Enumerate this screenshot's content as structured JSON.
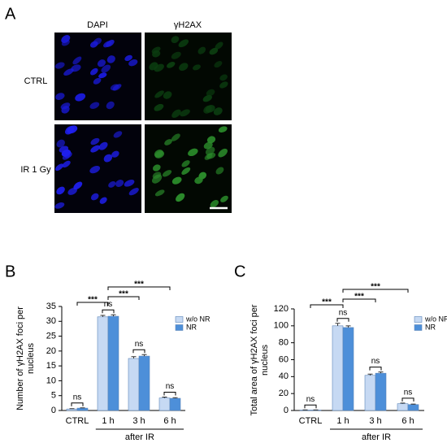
{
  "panel_a": {
    "label": "A",
    "columns": [
      "DAPI",
      "γH2AX"
    ],
    "rows": [
      "CTRL",
      "IR 1 Gy"
    ]
  },
  "chart_data": [
    {
      "type": "bar",
      "panel": "B",
      "ylabel": "Number of γH2AX foci per nucleus",
      "categories": [
        "CTRL",
        "1 h",
        "3 h",
        "6 h"
      ],
      "group_label": "after IR",
      "series": [
        {
          "name": "w/o NR",
          "color": "#c6d9f3",
          "values": [
            0.5,
            31.5,
            17.5,
            4.2
          ],
          "errors": [
            0.1,
            0.5,
            0.6,
            0.3
          ]
        },
        {
          "name": "NR",
          "color": "#4d8fd9",
          "values": [
            0.8,
            31.7,
            18.3,
            4.1
          ],
          "errors": [
            0.1,
            0.5,
            0.5,
            0.2
          ]
        }
      ],
      "ylim": [
        0,
        35
      ],
      "yticks": [
        0,
        5,
        10,
        15,
        20,
        25,
        30,
        35
      ],
      "significance": [
        "ns",
        "ns",
        "ns",
        "ns",
        "***",
        "***",
        "***"
      ],
      "legend": "upper right"
    },
    {
      "type": "bar",
      "panel": "C",
      "ylabel": "Total area of γH2AX foci per nucleus",
      "categories": [
        "CTRL",
        "1 h",
        "3 h",
        "6 h"
      ],
      "group_label": "after IR",
      "series": [
        {
          "name": "w/o NR",
          "color": "#c6d9f3",
          "values": [
            0.5,
            100,
            41.5,
            8
          ],
          "errors": [
            0.2,
            3,
            1.5,
            0.8
          ]
        },
        {
          "name": "NR",
          "color": "#4d8fd9",
          "values": [
            0.5,
            98,
            44,
            7
          ],
          "errors": [
            0.2,
            2,
            1.5,
            0.6
          ]
        }
      ],
      "ylim": [
        0,
        120
      ],
      "yticks": [
        0,
        20,
        40,
        60,
        80,
        100,
        120
      ],
      "significance": [
        "ns",
        "ns",
        "ns",
        "ns",
        "***",
        "***",
        "***"
      ],
      "legend": "upper right"
    }
  ]
}
